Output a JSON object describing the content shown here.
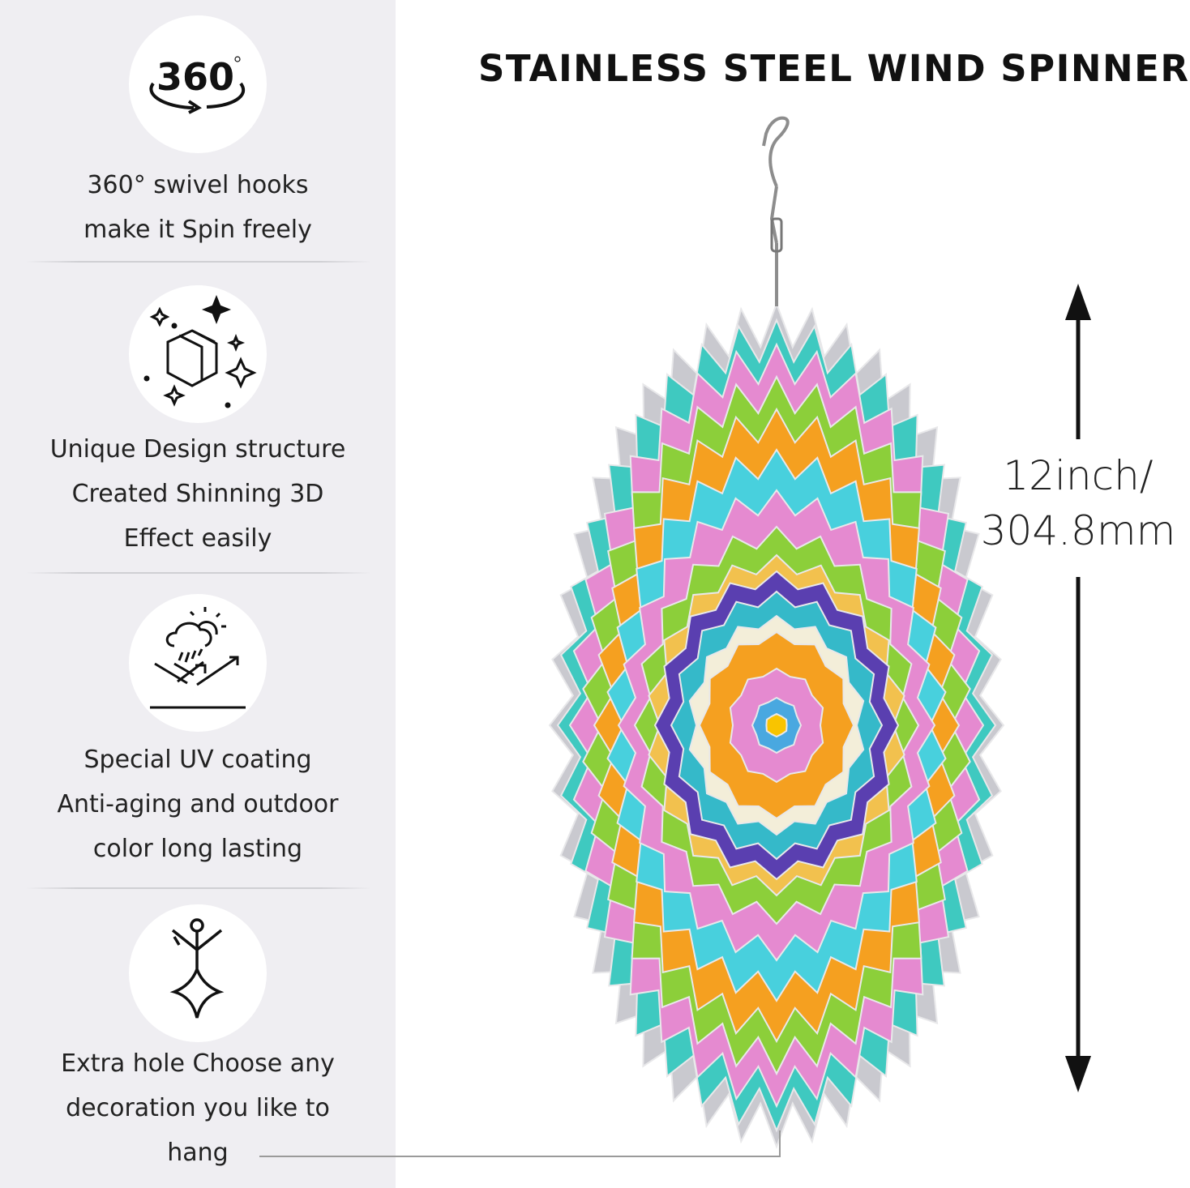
{
  "title": "STAINLESS STEEL WIND SPINNER",
  "dimension": {
    "line1": "12inch/",
    "line2": "304.8mm"
  },
  "features": [
    {
      "icon": "rotate-360-icon",
      "icon_text": "360",
      "lines": [
        "360° swivel hooks",
        "make it Spin freely"
      ]
    },
    {
      "icon": "sparkle-cube-icon",
      "lines": [
        "Unique Design structure",
        "Created Shinning 3D",
        "Effect easily"
      ]
    },
    {
      "icon": "weather-resistant-icon",
      "lines": [
        "Special UV coating",
        "Anti-aging and outdoor",
        "color long lasting"
      ]
    },
    {
      "icon": "hanging-figure-icon",
      "lines": [
        "Extra hole Choose any",
        "decoration you like to",
        "hang"
      ]
    }
  ],
  "colors": {
    "panel": "#efeef2",
    "accent_pink": "#e58ad0",
    "accent_teal": "#2ec4c4",
    "accent_orange": "#f5a020",
    "accent_purple": "#5a3fb0",
    "accent_green": "#8ccf3a"
  }
}
